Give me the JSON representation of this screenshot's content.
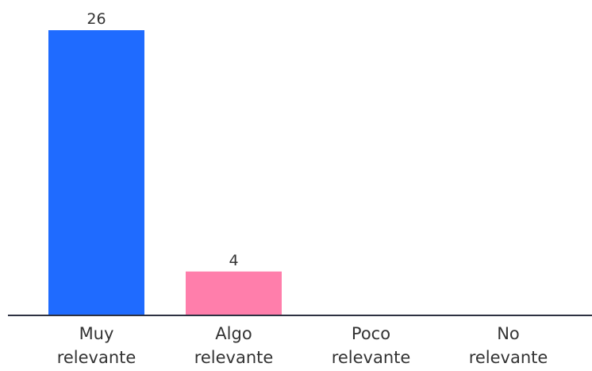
{
  "chart_data": {
    "type": "bar",
    "categories": [
      [
        "Muy",
        "relevante"
      ],
      [
        "Algo",
        "relevante"
      ],
      [
        "Poco",
        "relevante"
      ],
      [
        "No",
        "relevante"
      ]
    ],
    "values": [
      26,
      4,
      0,
      0
    ],
    "data_labels": [
      "26",
      "4",
      "",
      ""
    ],
    "bar_colors": [
      "#1f6bff",
      "#ff7eab",
      "#a3a3a3",
      "#a3a3a3"
    ],
    "axis_color": "#2d3142",
    "title": "",
    "xlabel": "",
    "ylabel": "",
    "ylim": [
      0,
      26
    ],
    "grid": false,
    "legend": "none"
  }
}
